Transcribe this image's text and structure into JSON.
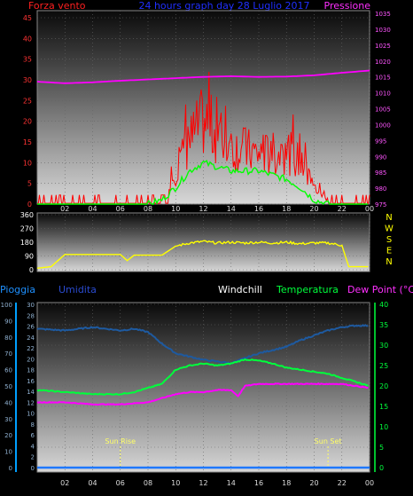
{
  "header": {
    "left_label": "Forza vento",
    "center_label": "24 hours graph day  28 Luglio 2017",
    "right_label": "Pressione"
  },
  "colors": {
    "wind": "#ff0000",
    "gust_overlay": "#00ff00",
    "pressure": "#ff00ff",
    "direction": "#ffff00",
    "rain": "#1e78ff",
    "humidity": "#1e5aa0",
    "temperature": "#00ff3c",
    "dewpoint": "#ff00ff",
    "grid_text_left": "#ff3333",
    "grid_text_right": "#ff55ff",
    "axis_cyan": "#00a0ff",
    "axis_green": "#00ff3c",
    "sun_marker": "#ffff66"
  },
  "compass": [
    "N",
    "W",
    "S",
    "E",
    "N"
  ],
  "bottom_legend": {
    "rain": "Pioggia",
    "humidity": "Umidita",
    "windchill": "Windchill",
    "temperature": "Temperatura",
    "dewpoint": "Dew Point (°C)"
  },
  "markers": {
    "sunrise": "Sun Rise",
    "sunset": "Sun Set"
  },
  "chart_data": [
    {
      "type": "line",
      "title": "24 hours graph day  28 Luglio 2017",
      "ylabel": "Forza vento",
      "y2label": "Pressione",
      "x_ticks": [
        "02",
        "04",
        "06",
        "08",
        "10",
        "12",
        "14",
        "16",
        "18",
        "20",
        "22",
        "00"
      ],
      "ylim": [
        0,
        45
      ],
      "y_ticks": [
        0,
        5,
        10,
        15,
        20,
        25,
        30,
        35,
        40,
        45
      ],
      "y2lim": [
        975,
        1035
      ],
      "y2_ticks": [
        975,
        980,
        985,
        990,
        995,
        1000,
        1005,
        1010,
        1015,
        1020,
        1025,
        1030,
        1035
      ],
      "series": [
        {
          "name": "Forza vento",
          "axis": "y",
          "x_hours": [
            0,
            2,
            4,
            6,
            8,
            9,
            10,
            11,
            12,
            13,
            14,
            15,
            16,
            17,
            18,
            19,
            20,
            21,
            22,
            23,
            24
          ],
          "values": [
            1,
            1,
            1,
            1,
            1,
            2,
            8,
            15,
            20,
            17,
            14,
            13,
            12,
            12,
            13,
            10,
            4,
            1,
            0,
            0,
            0
          ]
        },
        {
          "axis": "y",
          "x_hours": [
            0,
            8,
            9,
            10,
            11,
            12,
            13,
            14,
            15,
            16,
            17,
            18,
            19,
            20,
            21,
            22,
            23,
            24
          ],
          "values": [
            0,
            0,
            1,
            4,
            8,
            10,
            9,
            8,
            8,
            8,
            7,
            6,
            4,
            1,
            0,
            0,
            0,
            0
          ]
        },
        {
          "name": "Pressione",
          "axis": "y2",
          "x_hours": [
            0,
            2,
            4,
            6,
            8,
            10,
            12,
            14,
            16,
            18,
            20,
            22,
            24
          ],
          "values": [
            1013.5,
            1013.0,
            1013.3,
            1013.8,
            1014.2,
            1014.6,
            1015.0,
            1015.2,
            1015.0,
            1015.1,
            1015.5,
            1016.3,
            1017.0
          ]
        }
      ]
    },
    {
      "type": "line",
      "y_ticks": [
        0,
        90,
        180,
        270,
        360
      ],
      "ylim": [
        0,
        360
      ],
      "series": [
        {
          "x_hours": [
            0,
            1,
            2,
            3,
            4,
            5,
            6,
            6.5,
            7,
            8,
            9,
            10,
            11,
            12,
            13,
            14,
            15,
            16,
            17,
            18,
            19,
            20,
            21,
            22,
            22.5,
            23,
            24
          ],
          "values": [
            10,
            20,
            100,
            100,
            100,
            100,
            100,
            60,
            95,
            95,
            95,
            155,
            175,
            185,
            175,
            180,
            175,
            180,
            175,
            180,
            170,
            175,
            175,
            160,
            20,
            20,
            20
          ]
        }
      ]
    },
    {
      "type": "line",
      "x_ticks": [
        "02",
        "04",
        "06",
        "08",
        "10",
        "12",
        "14",
        "16",
        "18",
        "20",
        "22",
        "00"
      ],
      "rain_axis_ticks": [
        0,
        10,
        20,
        30,
        40,
        50,
        60,
        70,
        80,
        90,
        100
      ],
      "humidity_axis_ticks": [
        0,
        2,
        4,
        6,
        8,
        10,
        12,
        14,
        16,
        18,
        20,
        22,
        24,
        26,
        28,
        30
      ],
      "temp_axis_ticks": [
        0,
        5,
        10,
        15,
        20,
        25,
        30,
        35,
        40
      ],
      "ylim": [
        0,
        40
      ],
      "series": [
        {
          "name": "Umidita",
          "axis": "humidity",
          "x_hours": [
            0,
            2,
            4,
            5,
            6,
            7,
            8,
            9,
            10,
            11,
            12,
            13,
            14,
            15,
            16,
            17,
            18,
            19,
            20,
            21,
            22,
            23,
            24
          ],
          "values": [
            85,
            84,
            86,
            85,
            84,
            85,
            83,
            76,
            70,
            68,
            66,
            65,
            64,
            67,
            70,
            72,
            74,
            78,
            81,
            84,
            86,
            87,
            87
          ]
        },
        {
          "name": "Temperatura",
          "axis": "temp",
          "x_hours": [
            0,
            2,
            4,
            6,
            7,
            8,
            9,
            10,
            11,
            12,
            13,
            14,
            15,
            16,
            17,
            18,
            19,
            20,
            21,
            22,
            23,
            24
          ],
          "values": [
            19,
            18.5,
            18,
            18,
            18.5,
            19.5,
            20.5,
            24,
            25,
            25.5,
            25,
            25.5,
            26.5,
            26.2,
            25.5,
            24.5,
            24,
            23.5,
            23,
            22,
            21,
            20
          ]
        },
        {
          "name": "Dew Point (°C)",
          "axis": "temp",
          "x_hours": [
            0,
            2,
            4,
            6,
            8,
            9,
            10,
            11,
            12,
            13,
            14,
            14.5,
            15,
            16,
            17,
            18,
            19,
            20,
            21,
            22,
            23,
            24
          ],
          "values": [
            16,
            16,
            15.5,
            15.5,
            16,
            17,
            18,
            18.5,
            18.5,
            19,
            19,
            17.5,
            20,
            20.5,
            20.5,
            20.5,
            20.5,
            20.5,
            20.5,
            20.5,
            20,
            19.5
          ]
        },
        {
          "name": "Pioggia",
          "axis": "rain",
          "x_hours": [
            0,
            24
          ],
          "values": [
            0,
            0
          ]
        }
      ],
      "annotations": [
        {
          "label": "Sun Rise",
          "x_hour": 6
        },
        {
          "label": "Sun Set",
          "x_hour": 21
        }
      ]
    }
  ]
}
